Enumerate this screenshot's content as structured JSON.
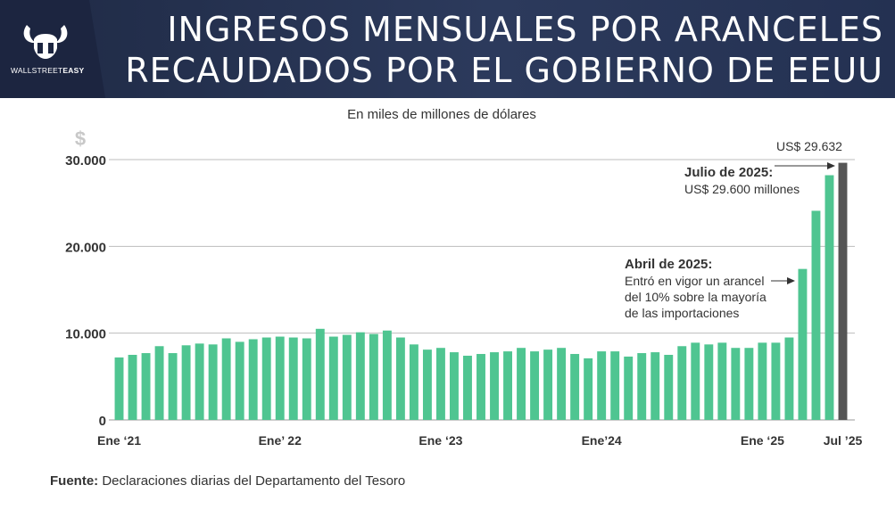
{
  "header": {
    "title_line1": "INGRESOS MENSUALES POR ARANCELES",
    "title_line2": "RECAUDADOS POR EL GOBIERNO DE EEUU",
    "logo_text_light": "WALLSTREET",
    "logo_text_bold": "EASY"
  },
  "subtitle": "En miles de millones de dólares",
  "source_label": "Fuente:",
  "source_text": "Declaraciones diarias del Departamento del Tesoro",
  "colors": {
    "bar": "#4fc591",
    "bar_highlight": "#555555",
    "grid": "#bdbdbd",
    "header_bg": "#243152"
  },
  "chart_data": {
    "type": "bar",
    "title": "Ingresos mensuales por aranceles recaudados por el gobierno de EEUU",
    "ylabel": "$",
    "ylim": [
      0,
      30000
    ],
    "yticks": [
      0,
      10000,
      20000,
      30000
    ],
    "ytick_labels": [
      "0",
      "10.000",
      "20.000",
      "30.000"
    ],
    "x_tick_labels": [
      {
        "index": 0,
        "label": "Ene ‘21"
      },
      {
        "index": 12,
        "label": "Ene’ 22"
      },
      {
        "index": 24,
        "label": "Ene ‘23"
      },
      {
        "index": 36,
        "label": "Ene’24"
      },
      {
        "index": 48,
        "label": "Ene ‘25"
      },
      {
        "index": 54,
        "label": "Jul ’25"
      }
    ],
    "categories": [
      "2021-01",
      "2021-02",
      "2021-03",
      "2021-04",
      "2021-05",
      "2021-06",
      "2021-07",
      "2021-08",
      "2021-09",
      "2021-10",
      "2021-11",
      "2021-12",
      "2022-01",
      "2022-02",
      "2022-03",
      "2022-04",
      "2022-05",
      "2022-06",
      "2022-07",
      "2022-08",
      "2022-09",
      "2022-10",
      "2022-11",
      "2022-12",
      "2023-01",
      "2023-02",
      "2023-03",
      "2023-04",
      "2023-05",
      "2023-06",
      "2023-07",
      "2023-08",
      "2023-09",
      "2023-10",
      "2023-11",
      "2023-12",
      "2024-01",
      "2024-02",
      "2024-03",
      "2024-04",
      "2024-05",
      "2024-06",
      "2024-07",
      "2024-08",
      "2024-09",
      "2024-10",
      "2024-11",
      "2024-12",
      "2025-01",
      "2025-02",
      "2025-03",
      "2025-04",
      "2025-05",
      "2025-06",
      "2025-07"
    ],
    "values": [
      7200,
      7500,
      7700,
      8500,
      7700,
      8600,
      8800,
      8700,
      9400,
      9000,
      9300,
      9500,
      9600,
      9500,
      9400,
      10500,
      9600,
      9800,
      10100,
      9900,
      10300,
      9500,
      8700,
      8100,
      8300,
      7800,
      7400,
      7600,
      7800,
      7900,
      8300,
      7900,
      8100,
      8300,
      7600,
      7100,
      7900,
      7900,
      7300,
      7700,
      7800,
      7500,
      8500,
      8900,
      8700,
      8900,
      8300,
      8300,
      8900,
      8900,
      9500,
      17400,
      24100,
      28200,
      29632
    ],
    "highlight_index": 54,
    "annotations": [
      {
        "id": "peak",
        "text": "US$ 29.632"
      },
      {
        "id": "july",
        "title": "Julio de 2025:",
        "lines": [
          "US$ 29.600 millones"
        ]
      },
      {
        "id": "april",
        "title": "Abril de 2025:",
        "lines": [
          "Entró en vigor un arancel",
          "del 10% sobre la mayoría",
          "de las importaciones"
        ]
      }
    ]
  }
}
